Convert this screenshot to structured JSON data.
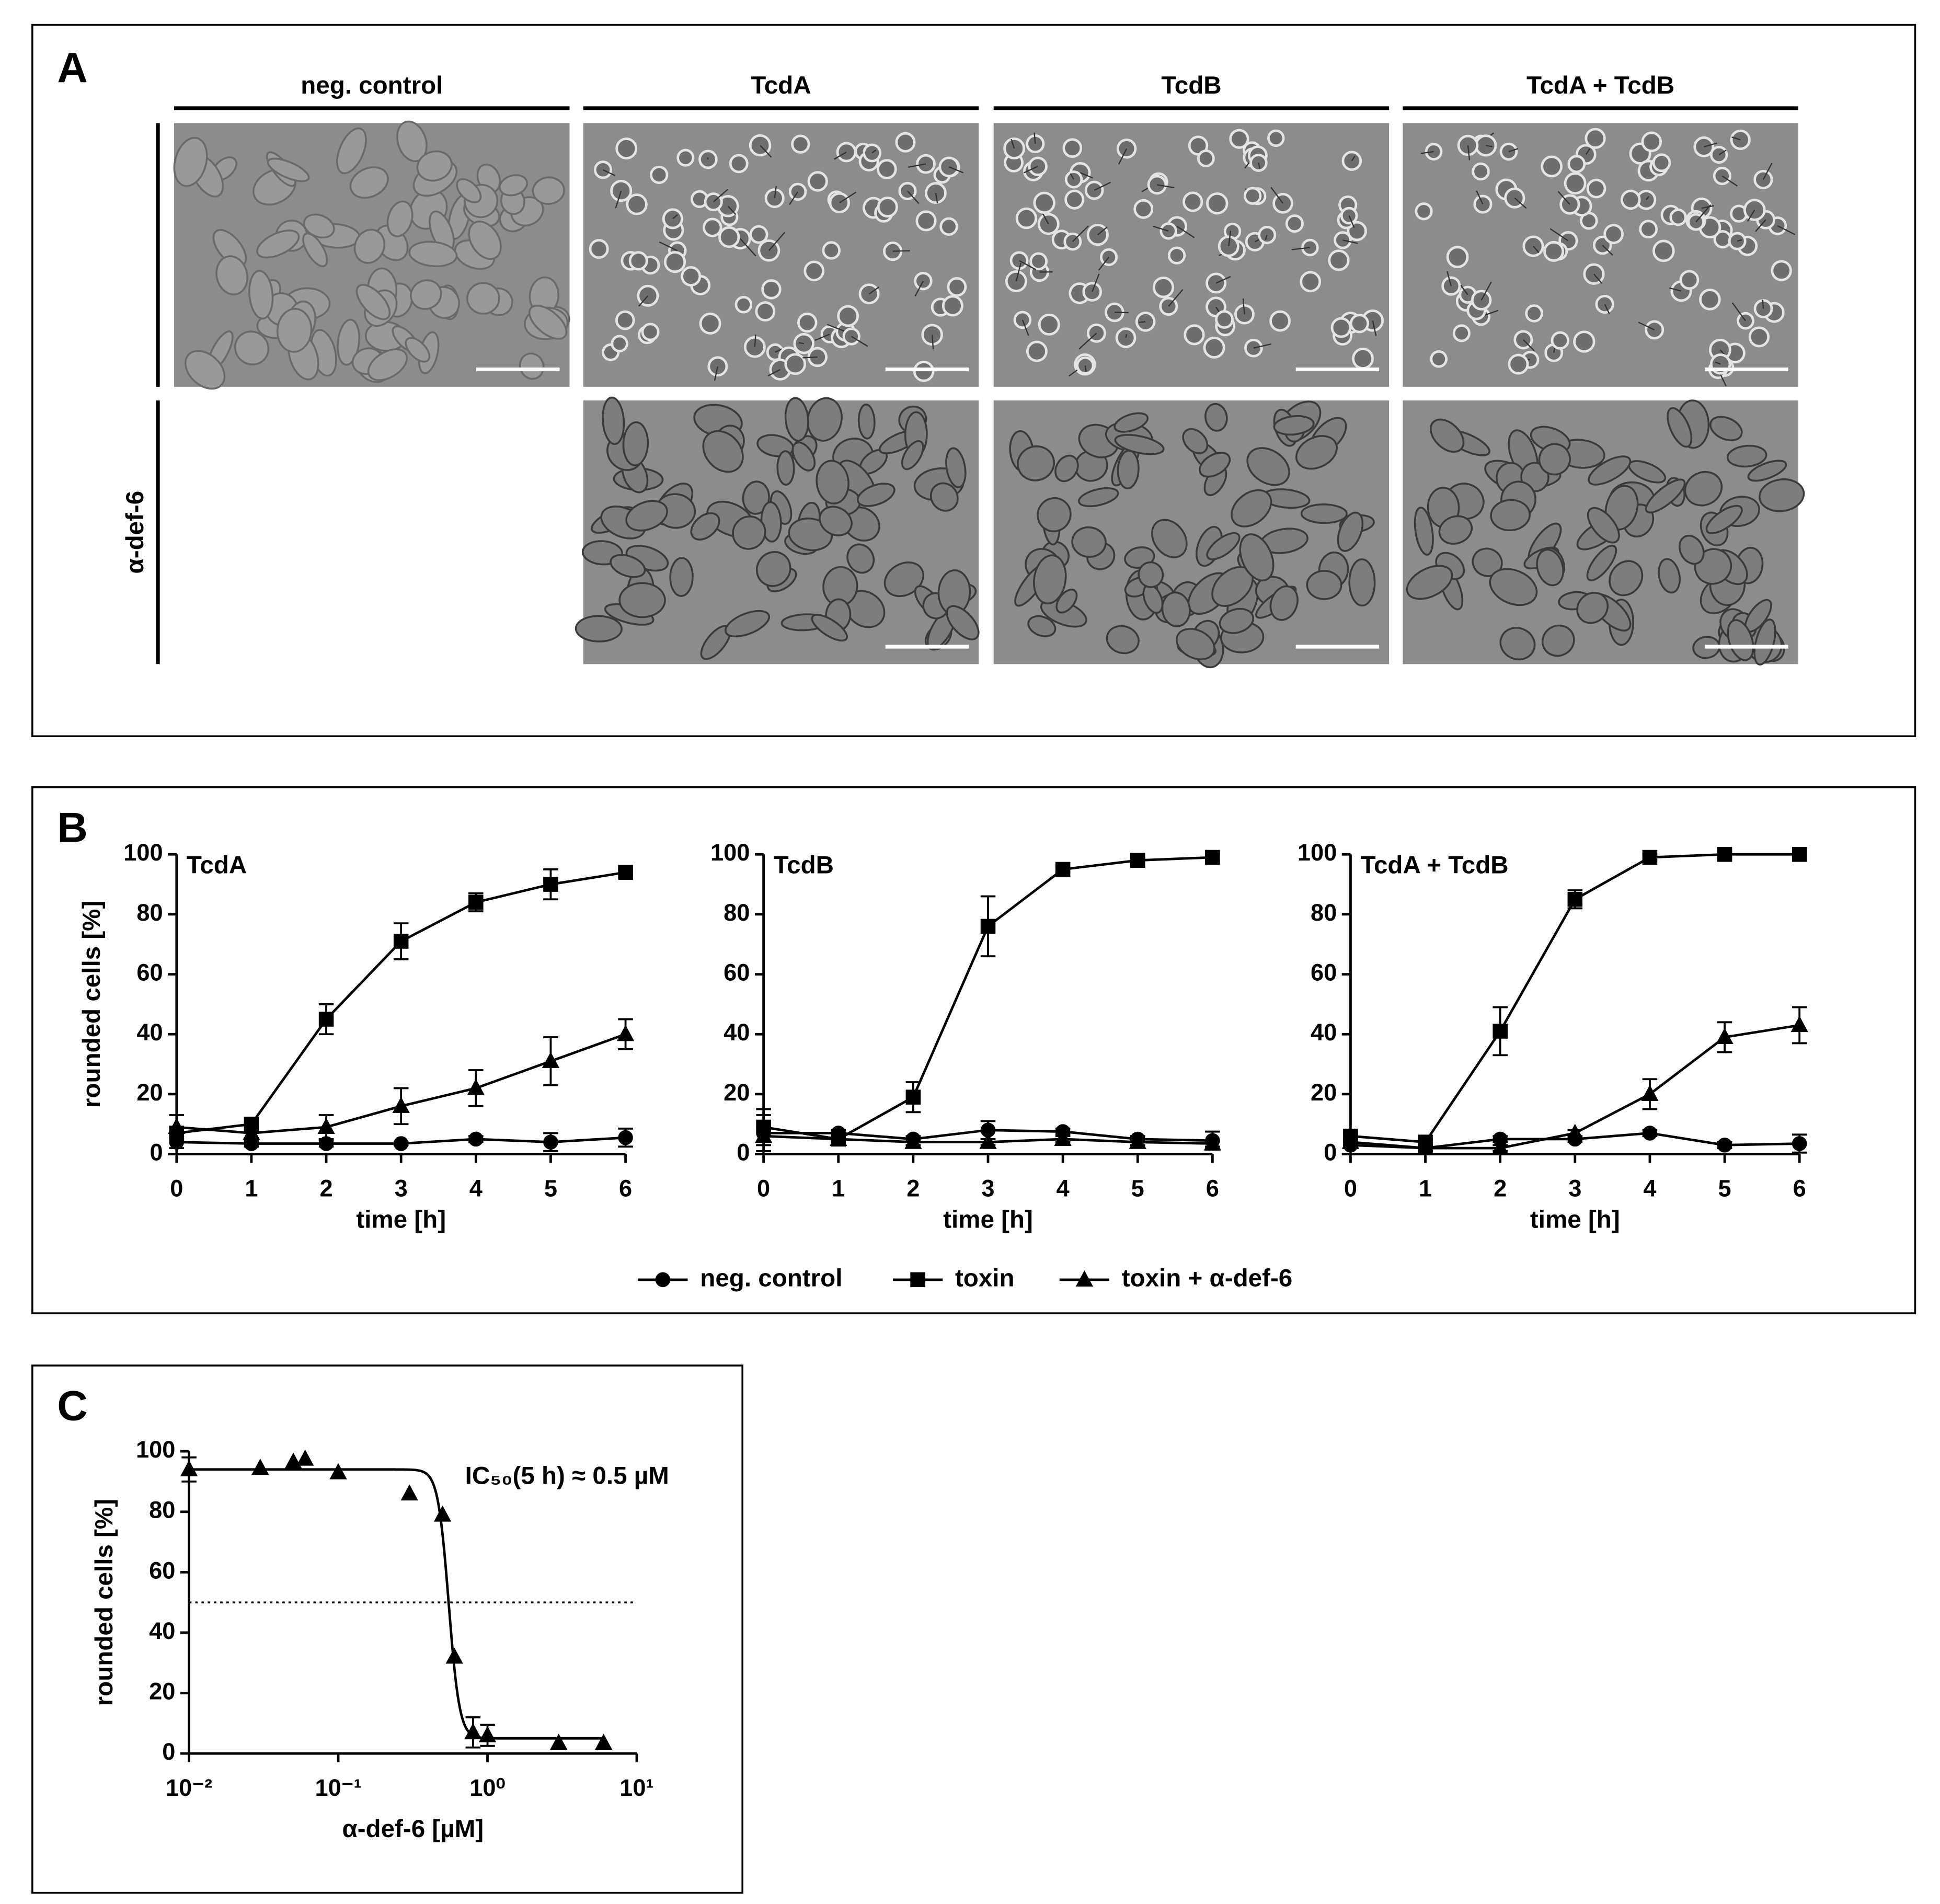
{
  "panel_a": {
    "label": "A",
    "columns": [
      "neg. control",
      "TcdA",
      "TcdB",
      "TcdA + TcdB"
    ],
    "row_label": "α-def-6"
  },
  "panel_b": {
    "label": "B"
  },
  "panel_c": {
    "label": "C"
  },
  "chart_data": [
    {
      "type": "line",
      "title": "TcdA",
      "xlabel": "time [h]",
      "ylabel": "rounded cells [%]",
      "x": [
        0,
        1,
        2,
        3,
        4,
        5,
        6
      ],
      "xlim": [
        0,
        6
      ],
      "xticks": [
        0,
        1,
        2,
        3,
        4,
        5,
        6
      ],
      "ylim": [
        0,
        100
      ],
      "yticks": [
        0,
        20,
        40,
        60,
        80,
        100
      ],
      "series": [
        {
          "name": "neg. control",
          "color": "#000000",
          "marker": "circle",
          "values": [
            4,
            3.5,
            3.5,
            3.5,
            5,
            4,
            5.5
          ],
          "errors": [
            2,
            1,
            1,
            0.5,
            1,
            3,
            3
          ]
        },
        {
          "name": "toxin",
          "color": "#000000",
          "marker": "square",
          "values": [
            7,
            10,
            45,
            71,
            84,
            90,
            94
          ],
          "errors": [
            2,
            2,
            5,
            6,
            3,
            5,
            1
          ]
        },
        {
          "name": "toxin + α-def-6",
          "color": "#000000",
          "marker": "triangle",
          "values": [
            9,
            7,
            9,
            16,
            22,
            31,
            40
          ],
          "errors": [
            4,
            2,
            4,
            6,
            6,
            8,
            5
          ]
        }
      ]
    },
    {
      "type": "line",
      "title": "TcdB",
      "xlabel": "time [h]",
      "x": [
        0,
        1,
        2,
        3,
        4,
        5,
        6
      ],
      "xlim": [
        0,
        6
      ],
      "xticks": [
        0,
        1,
        2,
        3,
        4,
        5,
        6
      ],
      "ylim": [
        0,
        100
      ],
      "yticks": [
        0,
        20,
        40,
        60,
        80,
        100
      ],
      "series": [
        {
          "color": "#000000",
          "marker": "circle",
          "values": [
            7,
            7,
            5,
            8,
            7.5,
            5,
            4.5
          ],
          "errors": [
            6,
            1,
            1,
            3,
            1,
            1,
            3
          ]
        },
        {
          "color": "#000000",
          "marker": "square",
          "values": [
            9,
            5,
            19,
            76,
            95,
            98,
            99
          ],
          "errors": [
            6,
            1,
            5,
            10,
            1,
            1,
            1
          ]
        },
        {
          "color": "#000000",
          "marker": "triangle",
          "values": [
            6,
            5,
            4,
            4,
            5,
            4,
            3.5
          ],
          "errors": [
            3,
            1,
            1,
            1,
            1,
            1,
            1
          ]
        }
      ]
    },
    {
      "type": "line",
      "title": "TcdA + TcdB",
      "xlabel": "time [h]",
      "x": [
        0,
        1,
        2,
        3,
        4,
        5,
        6
      ],
      "xlim": [
        0,
        6
      ],
      "xticks": [
        0,
        1,
        2,
        3,
        4,
        5,
        6
      ],
      "ylim": [
        0,
        100
      ],
      "yticks": [
        0,
        20,
        40,
        60,
        80,
        100
      ],
      "series": [
        {
          "color": "#000000",
          "marker": "circle",
          "values": [
            3,
            2,
            5,
            5,
            7,
            3,
            3.5
          ],
          "errors": [
            1,
            1,
            1,
            1,
            1,
            1,
            3
          ]
        },
        {
          "color": "#000000",
          "marker": "square",
          "values": [
            6,
            4,
            41,
            85,
            99,
            100,
            100
          ],
          "errors": [
            1,
            1,
            8,
            3,
            1,
            1,
            1
          ]
        },
        {
          "color": "#000000",
          "marker": "triangle",
          "values": [
            4,
            2,
            2,
            7,
            20,
            39,
            43
          ],
          "errors": [
            1,
            1,
            1,
            1,
            5,
            5,
            6
          ]
        }
      ]
    },
    {
      "type": "scatter",
      "xlabel": "α-def-6 [µM]",
      "ylabel": "rounded cells [%]",
      "annotation": "IC₅₀(5 h) ≈ 0.5 µM",
      "xscale": "log",
      "xlim": [
        0.01,
        10
      ],
      "xticks": [
        {
          "value": 0.01,
          "label": "10⁻²"
        },
        {
          "value": 0.1,
          "label": "10⁻¹"
        },
        {
          "value": 1,
          "label": "10⁰"
        },
        {
          "value": 10,
          "label": "10¹"
        }
      ],
      "ylim": [
        0,
        100
      ],
      "yticks": [
        0,
        20,
        40,
        60,
        80,
        100
      ],
      "x": [
        0.01,
        0.03,
        0.05,
        0.06,
        0.1,
        0.3,
        0.5,
        0.6,
        0.8,
        1,
        3,
        6
      ],
      "values": [
        94,
        94.5,
        96.5,
        97.5,
        93,
        86,
        79,
        32,
        7,
        6,
        3.5,
        3.5
      ],
      "errors": [
        4,
        0,
        0,
        0,
        0,
        0,
        0,
        0,
        5,
        3.5,
        0,
        0
      ],
      "color": "#000000",
      "marker": "triangle",
      "fit": {
        "top": 94,
        "bottom": 5,
        "ic50": 0.55,
        "hill": 12
      },
      "reference_line": 50
    }
  ]
}
